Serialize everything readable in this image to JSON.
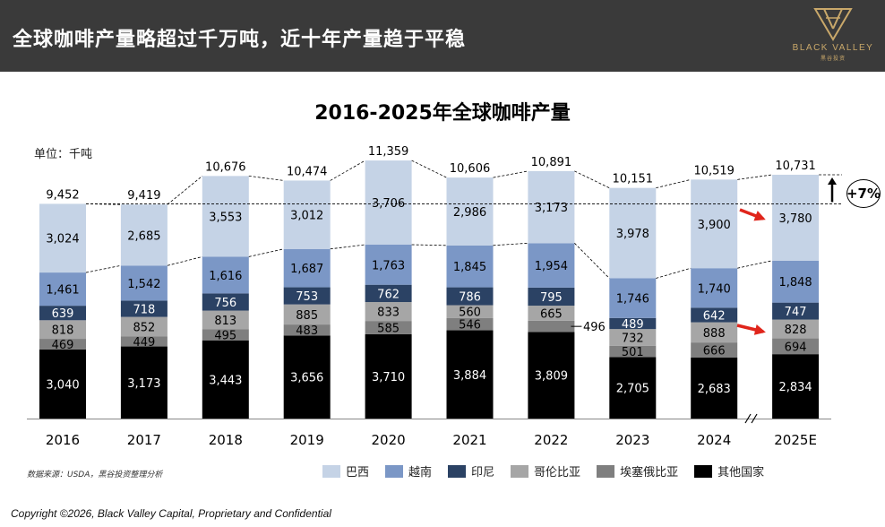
{
  "header": {
    "title": "全球咖啡产量略超过千万吨，近十年产量趋于平稳",
    "logo_name": "BLACK VALLEY",
    "logo_sub": "黑谷投资"
  },
  "unit_label": "单位：千吨",
  "change_badge": "+7%",
  "source_note": "数据来源：USDA，黑谷投资整理分析",
  "copyright": "Copyright ©2026, Black Valley Capital, Proprietary and Confidential",
  "colors": {
    "巴西": "#c5d3e6",
    "越南": "#7b97c6",
    "印尼": "#2b4264",
    "哥伦比亚": "#a6a6a6",
    "埃塞俄比亚": "#7f7f7f",
    "其他国家": "#000000",
    "header_bg": "#3a3a3a",
    "arrow": "#e0251b"
  },
  "chart_data": {
    "type": "bar",
    "stacked": true,
    "title": "2016-2025年全球咖啡产量",
    "ylabel": "单位：千吨",
    "categories": [
      "2016",
      "2017",
      "2018",
      "2019",
      "2020",
      "2021",
      "2022",
      "2023",
      "2024",
      "2025E"
    ],
    "totals": [
      "9,452",
      "9,419",
      "10,676",
      "10,474",
      "11,359",
      "10,606",
      "10,891",
      "10,151",
      "10,519",
      "10,731"
    ],
    "series": [
      {
        "name": "其他国家",
        "values": [
          3040,
          3173,
          3443,
          3656,
          3710,
          3884,
          3809,
          2705,
          2683,
          2834
        ],
        "labels": [
          "3,040",
          "3,173",
          "3,443",
          "3,656",
          "3,710",
          "3,884",
          "3,809",
          "2,705",
          "2,683",
          "2,834"
        ]
      },
      {
        "name": "埃塞俄比亚",
        "values": [
          469,
          449,
          495,
          483,
          585,
          546,
          496,
          501,
          666,
          694
        ],
        "labels": [
          "469",
          "449",
          "495",
          "483",
          "585",
          "546",
          "496",
          "501",
          "666",
          "694"
        ]
      },
      {
        "name": "哥伦比亚",
        "values": [
          818,
          852,
          813,
          885,
          833,
          560,
          665,
          732,
          888,
          828
        ],
        "labels": [
          "818",
          "852",
          "813",
          "885",
          "833",
          "560",
          "665",
          "732",
          "888",
          "828"
        ]
      },
      {
        "name": "印尼",
        "values": [
          639,
          718,
          756,
          753,
          762,
          786,
          795,
          489,
          642,
          747
        ],
        "labels": [
          "639",
          "718",
          "756",
          "753",
          "762",
          "786",
          "795",
          "489",
          "642",
          "747"
        ]
      },
      {
        "name": "越南",
        "values": [
          1461,
          1542,
          1616,
          1687,
          1763,
          1845,
          1954,
          1746,
          1740,
          1848
        ],
        "labels": [
          "1,461",
          "1,542",
          "1,616",
          "1,687",
          "1,763",
          "1,845",
          "1,954",
          "1,746",
          "1,740",
          "1,848"
        ]
      },
      {
        "name": "巴西",
        "values": [
          3024,
          2685,
          3553,
          3012,
          3706,
          2986,
          3173,
          3978,
          3900,
          3780
        ],
        "labels": [
          "3,024",
          "2,685",
          "3,553",
          "3,012",
          "3,706",
          "2,986",
          "3,173",
          "3,978",
          "3,900",
          "3,780"
        ]
      }
    ],
    "legend": [
      "巴西",
      "越南",
      "印尼",
      "哥伦比亚",
      "埃塞俄比亚",
      "其他国家"
    ],
    "legend_position": "bottom"
  }
}
